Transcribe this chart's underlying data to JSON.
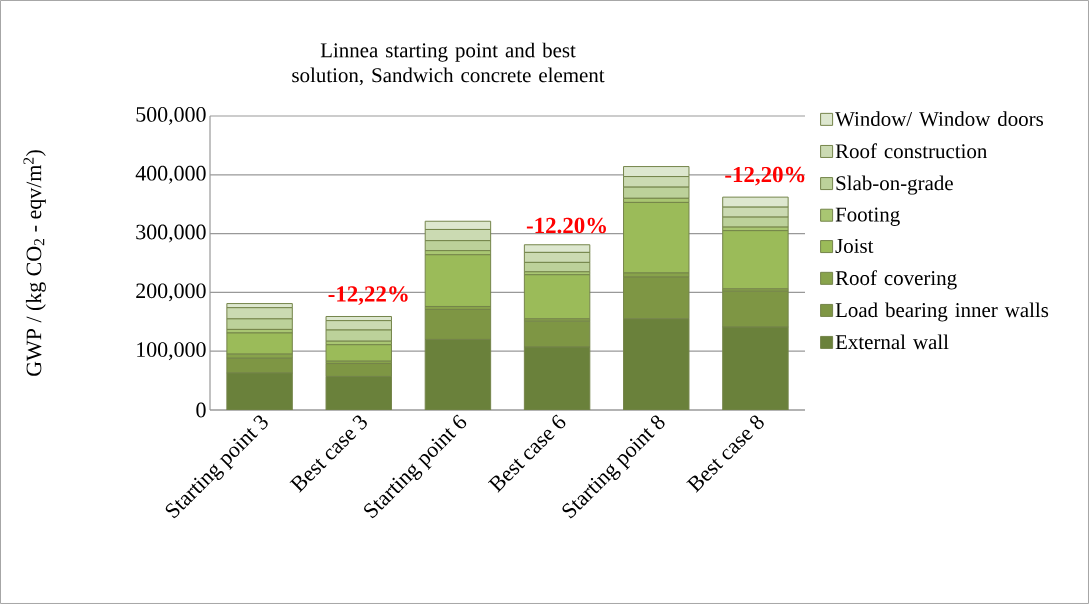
{
  "chart_data": {
    "type": "bar",
    "stacked": true,
    "title": "Linnea starting point and best solution, Sandwich concrete element",
    "ylabel": "GWP / (kg CO$_{2}$ - eqv/m$^{2}$)",
    "categories": [
      "Starting point 3",
      "Best case 3",
      "Starting point 6",
      "Best case 6",
      "Starting point 8",
      "Best case 8"
    ],
    "ylim": [
      0,
      500000
    ],
    "yticks": [
      0,
      {
        "value": 100000,
        "label": "100,000"
      },
      {
        "value": 200000,
        "label": "200,000"
      },
      {
        "value": 300000,
        "label": "300,000"
      },
      {
        "value": 400000,
        "label": "400,000"
      },
      {
        "value": 500000,
        "label": "500,000"
      }
    ],
    "grid": "y",
    "legend": "right",
    "series": [
      {
        "name": "External wall",
        "color": "#6a813b",
        "values": [
          63000,
          57000,
          120000,
          107000,
          155000,
          141000
        ]
      },
      {
        "name": "Load bearing inner walls",
        "color": "#7e9644",
        "values": [
          25000,
          22000,
          51000,
          44000,
          71000,
          61000
        ]
      },
      {
        "name": "Roof covering",
        "color": "#88a34b",
        "values": [
          7000,
          4000,
          5000,
          4000,
          7000,
          4000
        ]
      },
      {
        "name": "Joist",
        "color": "#9bbb59",
        "values": [
          36000,
          28000,
          88000,
          75000,
          120000,
          99000
        ]
      },
      {
        "name": "Footing",
        "color": "#a9c672",
        "values": [
          6000,
          6000,
          7000,
          5000,
          7000,
          6000
        ]
      },
      {
        "name": "Slab-on-grade",
        "color": "#bcd19a",
        "values": [
          18000,
          19000,
          17000,
          16000,
          19000,
          17000
        ]
      },
      {
        "name": "Roof construction",
        "color": "#cbdab2",
        "values": [
          19000,
          16000,
          19000,
          17000,
          18000,
          17000
        ]
      },
      {
        "name": "Window/ Window doors",
        "color": "#dde7cf",
        "values": [
          7000,
          7000,
          14000,
          13000,
          17000,
          17000
        ]
      }
    ],
    "annotations": [
      "-12,22%",
      "-12.20%",
      "-12,20%"
    ]
  }
}
